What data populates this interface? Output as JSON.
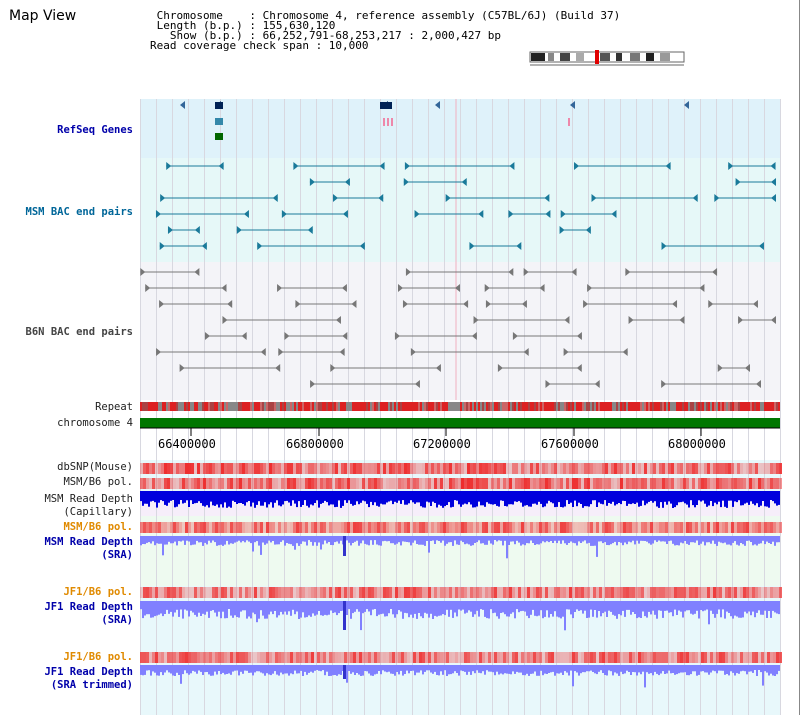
{
  "page": {
    "title": "Map View"
  },
  "header": {
    "lines": [
      " Chromosome    : Chromosome 4, reference assembly (C57BL/6J) (Build 37)",
      " Length (b.p.) : 155,630,120",
      "   Show (b.p.) : 66,252,791-68,253,217 : 2,000,427 bp",
      "Read coverage check span : 10,000"
    ]
  },
  "tracks": {
    "refseq": "RefSeq Genes",
    "msm_bac": "MSM BAC end pairs",
    "b6n_bac": "B6N BAC end pairs",
    "repeat": "Repeat",
    "chromosome": "chromosome 4",
    "dbsnp": "dbSNP(Mouse)",
    "msm_b6_pol_1": "MSM/B6 pol.",
    "msm_depth_cap_1": "MSM Read Depth",
    "msm_depth_cap_2": "(Capillary)",
    "msm_b6_pol_2": "MSM/B6 pol.",
    "msm_depth_sra_1": "MSM Read Depth",
    "msm_depth_sra_2": "(SRA)",
    "jf1_pol_1": "JF1/B6 pol.",
    "jf1_depth_sra_1": "JF1 Read Depth",
    "jf1_depth_sra_2": "(SRA)",
    "jf1_pol_2": "JF1/B6 pol.",
    "jf1_depth_trim_1": "JF1 Read Depth",
    "jf1_depth_trim_2": "(SRA trimmed)"
  },
  "axis": {
    "ticks": [
      "66400000",
      "66800000",
      "67200000",
      "67600000",
      "68000000"
    ]
  },
  "colors": {
    "refseq_bg": "#dff2fa",
    "msm_bac_bg": "#e6f8f8",
    "b6n_bac_bg": "#f4f4f8",
    "chromosome_bar": "#007700",
    "depth_blue": "#0000dd",
    "depth_light": "#8080ff"
  }
}
